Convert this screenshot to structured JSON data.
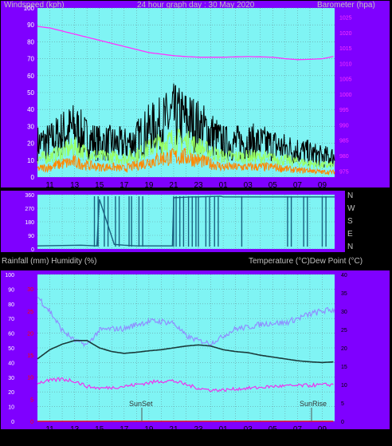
{
  "header": {
    "left_label": "Windspeed (kph)",
    "center_label": "24 hour graph day : 30 May 2020",
    "right_label": "Barometer (hpa)"
  },
  "lower_header": {
    "left_label": "Rainfall (mm)  Humidity (%)",
    "right_label": "Temperature (°C)Dew Point (°C)"
  },
  "x_tick_labels": [
    "11",
    "13",
    "15",
    "17",
    "19",
    "21",
    "23",
    "01",
    "03",
    "05",
    "07",
    "09"
  ],
  "direction_labels": [
    "N",
    "W",
    "S",
    "E",
    "N"
  ],
  "annotations": {
    "sunset": "SunSet",
    "sunrise": "SunRise"
  },
  "colors": {
    "plot_background": "#7ff4f4",
    "frame": "#7f00ff",
    "barometer": "#ff33ff",
    "wind_gust": "#000000",
    "wind_speed_avg": "#99ff66",
    "wind_speed": "#ff8800",
    "wind_direction": "#1a6080",
    "humidity": "#8f8fff",
    "temperature": "#1a3a3a",
    "dew_point": "#ee33ee",
    "rainfall": "#ff0000"
  },
  "chart_data": [
    {
      "type": "line",
      "name": "wind-and-barometer",
      "xlabel": "",
      "x": [
        "11",
        "13",
        "15",
        "17",
        "19",
        "21",
        "23",
        "01",
        "03",
        "05",
        "07",
        "09"
      ],
      "y_left_label": "Windspeed (kph)",
      "y_left_ticks": [
        0,
        10,
        20,
        30,
        40,
        50,
        60,
        70,
        80,
        90,
        100
      ],
      "ylim_left": [
        0,
        100
      ],
      "y_right_label": "Barometer (hpa)",
      "y_right_ticks": [
        975,
        980,
        985,
        990,
        995,
        1000,
        1005,
        1010,
        1015,
        1020,
        1025
      ],
      "ylim_right": [
        973,
        1028
      ],
      "series": [
        {
          "name": "Windspeed (kph)",
          "axis": "left",
          "x": [
            10,
            11,
            12,
            13,
            14,
            15,
            16,
            17,
            18,
            19,
            20,
            21,
            22,
            23,
            24,
            25,
            26,
            27,
            28,
            29,
            30,
            31,
            32,
            33,
            34
          ],
          "values": [
            20,
            21,
            26,
            29,
            23,
            20,
            20,
            19,
            22,
            28,
            31,
            36,
            34,
            30,
            26,
            20,
            20,
            21,
            20,
            19,
            17,
            16,
            14,
            12,
            12
          ]
        },
        {
          "name": "",
          "axis": "left",
          "x": [
            10,
            11,
            12,
            13,
            14,
            15,
            16,
            17,
            18,
            19,
            20,
            21,
            22,
            23,
            24,
            25,
            26,
            27,
            28,
            29,
            30,
            31,
            32,
            33,
            34
          ],
          "values": [
            11,
            12,
            15,
            18,
            14,
            12,
            12,
            11,
            13,
            17,
            20,
            22,
            21,
            18,
            15,
            12,
            12,
            12,
            12,
            11,
            10,
            9,
            8,
            7,
            7
          ]
        },
        {
          "name": "",
          "axis": "left",
          "x": [
            10,
            11,
            12,
            13,
            14,
            15,
            16,
            17,
            18,
            19,
            20,
            21,
            22,
            23,
            24,
            25,
            26,
            27,
            28,
            29,
            30,
            31,
            32,
            33,
            34
          ],
          "values": [
            5,
            6,
            8,
            9,
            7,
            6,
            6,
            5,
            7,
            9,
            11,
            12,
            12,
            10,
            8,
            6,
            6,
            6,
            6,
            6,
            5,
            4,
            4,
            3,
            3
          ]
        },
        {
          "name": "Barometer (hpa)",
          "axis": "right",
          "x": [
            10,
            11,
            12,
            13,
            14,
            15,
            16,
            17,
            18,
            19,
            20,
            21,
            22,
            23,
            24,
            25,
            26,
            27,
            28,
            29,
            30,
            31,
            32,
            33,
            34
          ],
          "values": [
            1022,
            1021.5,
            1020.5,
            1019.5,
            1018.5,
            1017.5,
            1016.5,
            1015.5,
            1014.5,
            1013.5,
            1013,
            1012.5,
            1012.2,
            1012,
            1012,
            1012,
            1012.1,
            1012.2,
            1012.1,
            1012,
            1011.5,
            1011.2,
            1011.3,
            1011.5,
            1012.3
          ]
        }
      ]
    },
    {
      "type": "line",
      "name": "wind-direction",
      "xlabel": "",
      "x": [
        "11",
        "13",
        "15",
        "17",
        "19",
        "21",
        "23",
        "01",
        "03",
        "05",
        "07",
        "09"
      ],
      "y_ticks": [
        0,
        90,
        180,
        270,
        360
      ],
      "ylim": [
        0,
        360
      ],
      "series": [
        {
          "name": "",
          "x": [
            10,
            13.5,
            14.8,
            15,
            16.2,
            17,
            18,
            20.9,
            21,
            22.5,
            23,
            24.8,
            25,
            34
          ],
          "values": [
            20,
            25,
            20,
            330,
            30,
            25,
            20,
            20,
            340,
            345,
            345,
            350,
            345,
            345
          ]
        }
      ]
    },
    {
      "type": "line",
      "name": "humidity-temperature",
      "xlabel": "",
      "x": [
        "11",
        "13",
        "15",
        "17",
        "19",
        "21",
        "23",
        "01",
        "03",
        "05",
        "07",
        "09"
      ],
      "y_left_label": "Rainfall (mm)  Humidity (%)",
      "y_left_ticks": [
        0,
        10,
        20,
        30,
        40,
        50,
        60,
        70,
        80,
        90,
        100
      ],
      "ylim_left": [
        0,
        100
      ],
      "y_rain_ticks": [
        0,
        5,
        10,
        15,
        20,
        25,
        30
      ],
      "ylim_rain": [
        0,
        33.3
      ],
      "y_right_label": "Temperature (°C)Dew Point (°C)",
      "y_right_ticks": [
        0,
        5,
        10,
        15,
        20,
        25,
        30,
        35,
        40
      ],
      "ylim_right": [
        0,
        40
      ],
      "series": [
        {
          "name": "Humidity (%)",
          "axis": "left",
          "x": [
            10,
            11,
            12,
            13,
            14,
            15,
            16,
            17,
            18,
            19,
            20,
            21,
            22,
            23,
            24,
            25,
            26,
            27,
            28,
            29,
            30,
            31,
            32,
            33,
            34
          ],
          "values": [
            85,
            75,
            62,
            55,
            52,
            62,
            63,
            63,
            66,
            68,
            68,
            67,
            58,
            55,
            53,
            58,
            63,
            64,
            66,
            67,
            67,
            70,
            73,
            75,
            76
          ]
        },
        {
          "name": "Temperature (°C)",
          "axis": "right",
          "x": [
            10,
            11,
            12,
            13,
            14,
            15,
            16,
            17,
            18,
            19,
            20,
            21,
            22,
            23,
            24,
            25,
            26,
            27,
            28,
            29,
            30,
            31,
            32,
            33,
            34
          ],
          "values": [
            17,
            19.5,
            21,
            22,
            22,
            20,
            19,
            18.5,
            18.8,
            19.2,
            19.5,
            20,
            20.5,
            20.8,
            20.5,
            19.5,
            19,
            18.7,
            18,
            17.5,
            17,
            16.5,
            16.2,
            16,
            16.2
          ]
        },
        {
          "name": "Dew Point (°C)",
          "axis": "right",
          "x": [
            10,
            11,
            12,
            13,
            14,
            15,
            16,
            17,
            18,
            19,
            20,
            21,
            22,
            23,
            24,
            25,
            26,
            27,
            28,
            29,
            30,
            31,
            32,
            33,
            34
          ],
          "values": [
            10.5,
            11,
            11.5,
            11,
            9.5,
            9,
            9.2,
            9.5,
            10,
            10.5,
            11,
            11,
            10,
            9,
            8.5,
            8.5,
            8.8,
            9,
            9.2,
            9.5,
            9.6,
            9.7,
            9.8,
            9.9,
            10
          ]
        },
        {
          "name": "Rainfall (mm)",
          "axis": "rain",
          "x": [
            10,
            34
          ],
          "values": [
            0,
            0
          ]
        }
      ]
    }
  ]
}
